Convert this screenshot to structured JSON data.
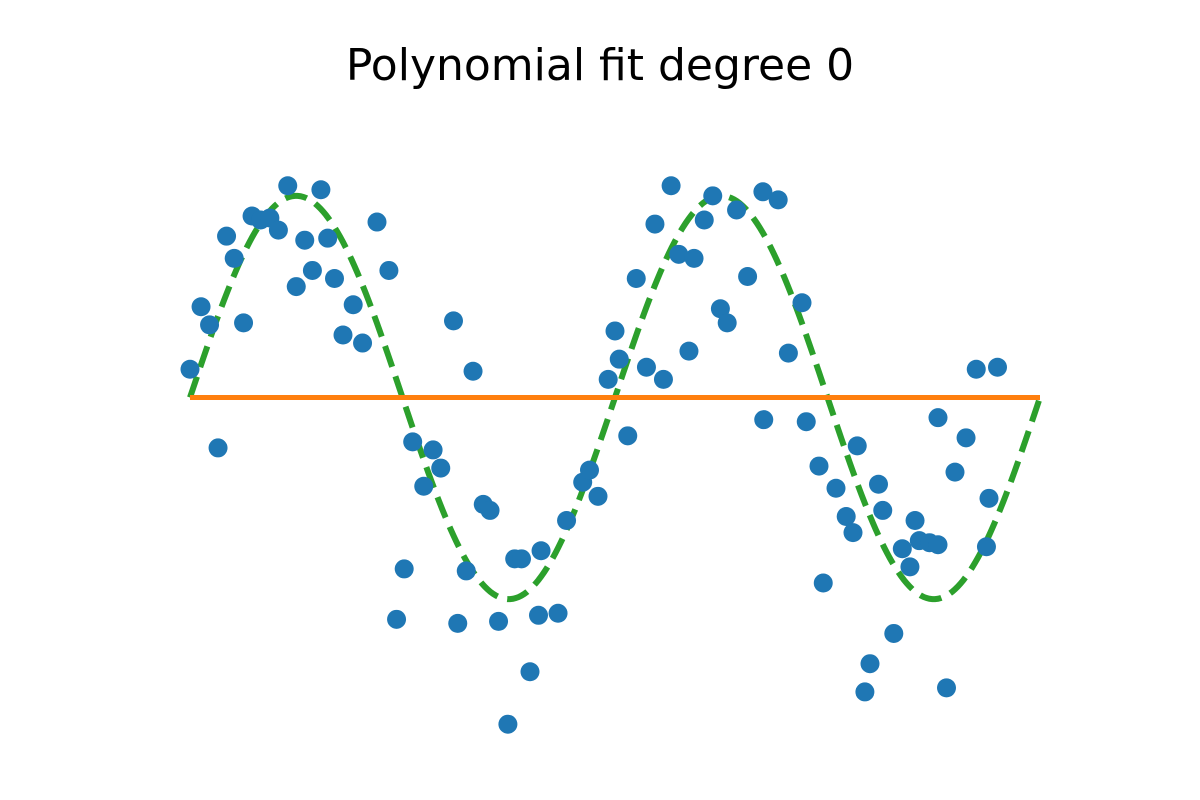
{
  "chart_data": {
    "type": "scatter",
    "title": "Polynomial fit degree 0",
    "xlabel": "",
    "ylabel": "",
    "axes_visible": false,
    "grid": false,
    "legend": "none",
    "xlim": [
      0,
      1
    ],
    "ylim": [
      -1.5,
      1.5
    ],
    "series": [
      {
        "type": "scatter",
        "color": "#1f77b4",
        "marker": "circle",
        "points": [
          [
            0.0,
            0.14
          ],
          [
            0.013,
            0.45
          ],
          [
            0.023,
            0.36
          ],
          [
            0.033,
            -0.25
          ],
          [
            0.043,
            0.8
          ],
          [
            0.052,
            0.69
          ],
          [
            0.063,
            0.37
          ],
          [
            0.073,
            0.9
          ],
          [
            0.083,
            0.88
          ],
          [
            0.094,
            0.89
          ],
          [
            0.104,
            0.83
          ],
          [
            0.115,
            1.05
          ],
          [
            0.125,
            0.55
          ],
          [
            0.135,
            0.78
          ],
          [
            0.144,
            0.63
          ],
          [
            0.154,
            1.03
          ],
          [
            0.162,
            0.79
          ],
          [
            0.17,
            0.59
          ],
          [
            0.18,
            0.31
          ],
          [
            0.192,
            0.46
          ],
          [
            0.203,
            0.27
          ],
          [
            0.22,
            0.87
          ],
          [
            0.234,
            0.63
          ],
          [
            0.243,
            -1.1
          ],
          [
            0.252,
            -0.85
          ],
          [
            0.262,
            -0.22
          ],
          [
            0.275,
            -0.44
          ],
          [
            0.286,
            -0.26
          ],
          [
            0.295,
            -0.35
          ],
          [
            0.31,
            0.38
          ],
          [
            0.315,
            -1.12
          ],
          [
            0.325,
            -0.86
          ],
          [
            0.333,
            0.13
          ],
          [
            0.345,
            -0.53
          ],
          [
            0.353,
            -0.56
          ],
          [
            0.363,
            -1.11
          ],
          [
            0.374,
            -1.62
          ],
          [
            0.382,
            -0.8
          ],
          [
            0.39,
            -0.8
          ],
          [
            0.4,
            -1.36
          ],
          [
            0.41,
            -1.08
          ],
          [
            0.413,
            -0.76
          ],
          [
            0.433,
            -1.07
          ],
          [
            0.443,
            -0.61
          ],
          [
            0.462,
            -0.42
          ],
          [
            0.47,
            -0.36
          ],
          [
            0.48,
            -0.49
          ],
          [
            0.492,
            0.09
          ],
          [
            0.5,
            0.33
          ],
          [
            0.505,
            0.19
          ],
          [
            0.515,
            -0.19
          ],
          [
            0.525,
            0.59
          ],
          [
            0.537,
            0.15
          ],
          [
            0.547,
            0.86
          ],
          [
            0.557,
            0.09
          ],
          [
            0.566,
            1.05
          ],
          [
            0.575,
            0.71
          ],
          [
            0.587,
            0.23
          ],
          [
            0.593,
            0.69
          ],
          [
            0.605,
            0.88
          ],
          [
            0.615,
            1.0
          ],
          [
            0.624,
            0.44
          ],
          [
            0.632,
            0.37
          ],
          [
            0.643,
            0.93
          ],
          [
            0.656,
            0.6
          ],
          [
            0.674,
            1.02
          ],
          [
            0.675,
            -0.11
          ],
          [
            0.692,
            0.98
          ],
          [
            0.704,
            0.22
          ],
          [
            0.72,
            0.47
          ],
          [
            0.725,
            -0.12
          ],
          [
            0.74,
            -0.34
          ],
          [
            0.745,
            -0.92
          ],
          [
            0.76,
            -0.45
          ],
          [
            0.772,
            -0.59
          ],
          [
            0.78,
            -0.67
          ],
          [
            0.785,
            -0.24
          ],
          [
            0.794,
            -1.46
          ],
          [
            0.8,
            -1.32
          ],
          [
            0.81,
            -0.43
          ],
          [
            0.815,
            -0.56
          ],
          [
            0.828,
            -1.17
          ],
          [
            0.838,
            -0.75
          ],
          [
            0.847,
            -0.84
          ],
          [
            0.853,
            -0.61
          ],
          [
            0.858,
            -0.71
          ],
          [
            0.87,
            -0.72
          ],
          [
            0.88,
            -0.73
          ],
          [
            0.88,
            -0.1
          ],
          [
            0.89,
            -1.44
          ],
          [
            0.9,
            -0.37
          ],
          [
            0.913,
            -0.2
          ],
          [
            0.937,
            -0.74
          ],
          [
            0.94,
            -0.5
          ],
          [
            0.925,
            0.14
          ],
          [
            0.95,
            0.15
          ]
        ]
      },
      {
        "type": "line",
        "color": "#ff7f0e",
        "style": "solid",
        "x": [
          0.0,
          1.0
        ],
        "y": [
          0.0,
          0.0
        ]
      },
      {
        "type": "line",
        "color": "#2ca02c",
        "style": "dashed",
        "function": "sin(4*pi*x)",
        "x_range": [
          0,
          1
        ]
      }
    ]
  }
}
